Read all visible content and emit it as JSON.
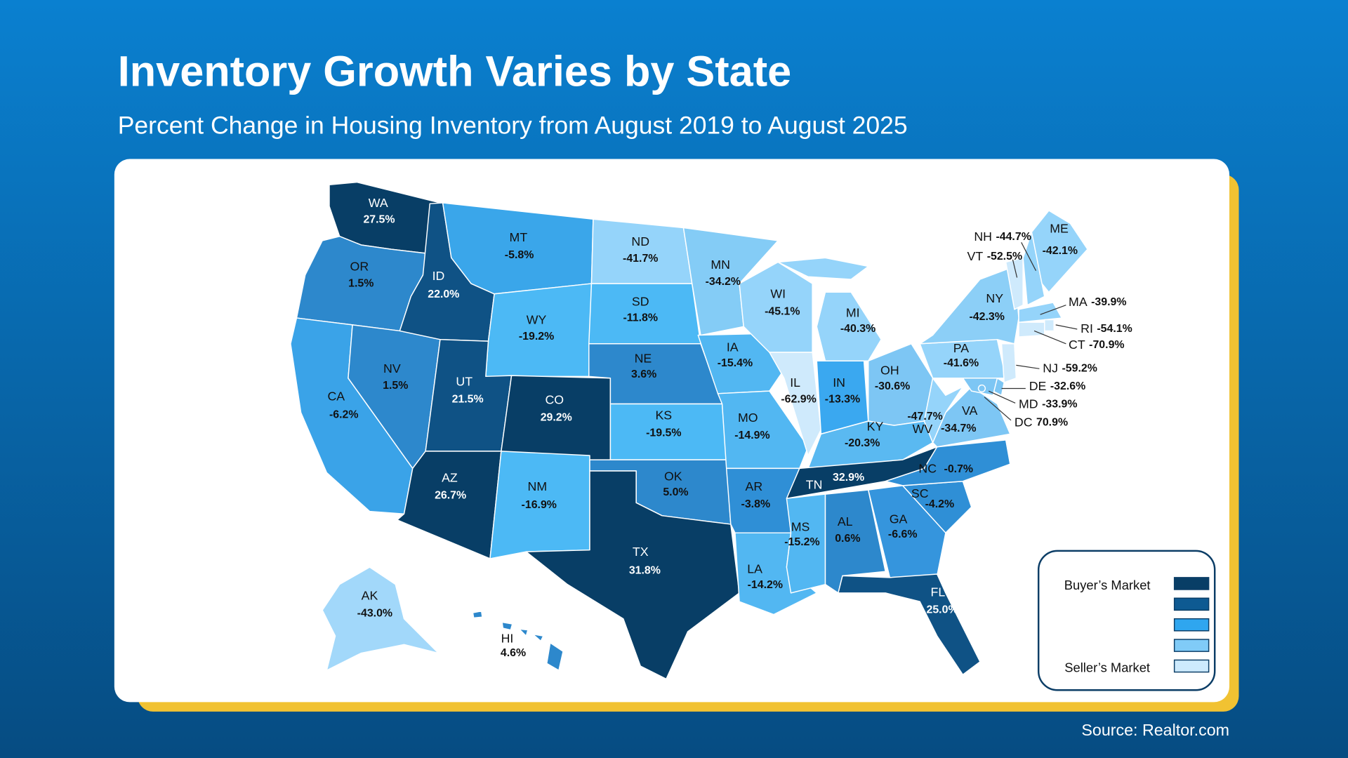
{
  "chart_data": {
    "type": "map",
    "title": "Inventory Growth Varies by State",
    "subtitle": "Percent Change in Housing Inventory from August 2019 to August 2025",
    "source": "Source: Realtor.com",
    "categories": [
      "WA",
      "OR",
      "CA",
      "NV",
      "ID",
      "MT",
      "WY",
      "UT",
      "CO",
      "AZ",
      "NM",
      "ND",
      "SD",
      "NE",
      "KS",
      "OK",
      "TX",
      "MN",
      "IA",
      "MO",
      "AR",
      "LA",
      "WI",
      "IL",
      "MI",
      "IN",
      "OH",
      "KY",
      "TN",
      "MS",
      "AL",
      "GA",
      "FL",
      "SC",
      "NC",
      "VA",
      "WV",
      "PA",
      "NY",
      "VT",
      "NH",
      "ME",
      "MA",
      "RI",
      "CT",
      "NJ",
      "DE",
      "MD",
      "DC",
      "AK",
      "HI"
    ],
    "values": [
      27.5,
      1.5,
      -6.2,
      1.5,
      22.0,
      -5.8,
      -19.2,
      21.5,
      29.2,
      26.7,
      -16.9,
      -41.7,
      -11.8,
      3.6,
      -19.5,
      5.0,
      31.8,
      -34.2,
      -15.4,
      -14.9,
      -3.8,
      -14.2,
      -45.1,
      -62.9,
      -40.3,
      -13.3,
      -30.6,
      -20.3,
      32.9,
      -15.2,
      0.6,
      -6.6,
      25.0,
      -4.2,
      -0.7,
      -34.7,
      -47.7,
      -41.6,
      -42.3,
      -52.5,
      -44.7,
      -42.1,
      -39.9,
      -54.1,
      -70.9,
      -59.2,
      -32.6,
      -33.9,
      70.9,
      -43.0,
      4.6
    ],
    "value_labels": [
      "27.5%",
      "1.5%",
      "-6.2%",
      "1.5%",
      "22.0%",
      "-5.8%",
      "-19.2%",
      "21.5%",
      "29.2%",
      "26.7%",
      "-16.9%",
      "-41.7%",
      "-11.8%",
      "3.6%",
      "-19.5%",
      "5.0%",
      "31.8%",
      "-34.2%",
      "-15.4%",
      "-14.9%",
      "-3.8%",
      "-14.2%",
      "-45.1%",
      "-62.9%",
      "-40.3%",
      "-13.3%",
      "-30.6%",
      "-20.3%",
      "32.9%",
      "-15.2%",
      "0.6%",
      "-6.6%",
      "25.0%",
      "-4.2%",
      "-0.7%",
      "-34.7%",
      "-47.7%",
      "-41.6%",
      "-42.3%",
      "-52.5%",
      "-44.7%",
      "-42.1%",
      "-39.9%",
      "-54.1%",
      "-70.9%",
      "-59.2%",
      "-32.6%",
      "-33.9%",
      "70.9%",
      "-43.0%",
      "4.6%"
    ],
    "colors": [
      "#083e66",
      "#2d88cc",
      "#3aa3e8",
      "#2d88cc",
      "#0f5285",
      "#3aa6ea",
      "#4cb9f5",
      "#0f5285",
      "#083e66",
      "#083e66",
      "#4cb9f5",
      "#95d4fa",
      "#4cb9f5",
      "#2d88cc",
      "#4cb9f5",
      "#2d88cc",
      "#083e66",
      "#84ccf6",
      "#52b7f2",
      "#52b7f2",
      "#2f8fd6",
      "#52b7f2",
      "#95d4fa",
      "#cfeafc",
      "#95d4fa",
      "#3aa8f0",
      "#7dc6f4",
      "#5ab9f1",
      "#083e66",
      "#52b7f2",
      "#2d88cc",
      "#3595dd",
      "#0f5285",
      "#2f8fd6",
      "#2f8fd6",
      "#7dc6f4",
      "#95d4fa",
      "#95d4fa",
      "#8ccff7",
      "#cfeafc",
      "#95d4fa",
      "#95d4fa",
      "#95d4fa",
      "#cfeafc",
      "#cfeafc",
      "#cfeafc",
      "#7dc6f4",
      "#7dc6f4",
      "#7dc6f4",
      "#a2d8fa",
      "#2d88cc"
    ],
    "legend": [
      {
        "label": "Buyer’s Market",
        "color": "#083e66"
      },
      {
        "color": "#0e5a92"
      },
      {
        "color": "#2fa6ef"
      },
      {
        "color": "#80cbf7"
      },
      {
        "label": "Seller’s Market",
        "color": "#cdeafd"
      }
    ]
  }
}
